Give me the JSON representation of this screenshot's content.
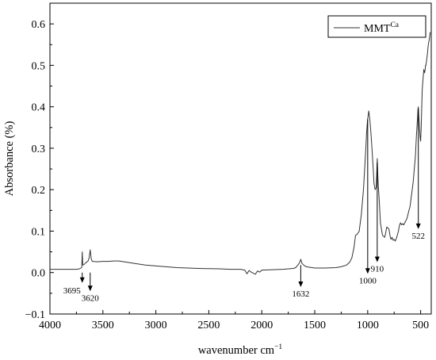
{
  "chart_data": {
    "type": "line",
    "xlabel": "wavenumber cm",
    "xlabel_exponent": "−1",
    "ylabel": "Absorbance (%)",
    "xlim": [
      4000,
      400
    ],
    "ylim": [
      -0.1,
      0.65
    ],
    "x_reversed": true,
    "grid": false,
    "legend_placement": "top-right",
    "x_ticks": [
      4000,
      3500,
      3000,
      2500,
      2000,
      1500,
      1000,
      500
    ],
    "x_tick_labels": [
      "4000",
      "3500",
      "3000",
      "2500",
      "2000",
      "1500",
      "1000",
      "500"
    ],
    "y_ticks": [
      -0.1,
      0.0,
      0.1,
      0.2,
      0.3,
      0.4,
      0.5,
      0.6
    ],
    "y_tick_labels": [
      "−0.1",
      "0.0",
      "0.1",
      "0.2",
      "0.3",
      "0.4",
      "0.5",
      "0.6"
    ],
    "series": [
      {
        "name": "MMT",
        "name_superscript": "Ca",
        "color": "#333333",
        "x": [
          4000,
          3750,
          3720,
          3700,
          3695,
          3690,
          3680,
          3660,
          3640,
          3630,
          3620,
          3610,
          3600,
          3550,
          3500,
          3450,
          3400,
          3350,
          3300,
          3200,
          3100,
          3000,
          2800,
          2600,
          2400,
          2300,
          2200,
          2160,
          2140,
          2120,
          2100,
          2060,
          2040,
          2020,
          2000,
          1900,
          1800,
          1700,
          1680,
          1660,
          1645,
          1632,
          1620,
          1600,
          1580,
          1500,
          1400,
          1300,
          1250,
          1200,
          1170,
          1150,
          1130,
          1115,
          1100,
          1080,
          1060,
          1040,
          1020,
          1010,
          1000,
          990,
          980,
          970,
          960,
          950,
          940,
          930,
          920,
          915,
          910,
          905,
          900,
          890,
          880,
          860,
          840,
          830,
          820,
          800,
          790,
          780,
          770,
          760,
          750,
          740,
          730,
          720,
          710,
          700,
          690,
          680,
          670,
          660,
          650,
          640,
          630,
          620,
          610,
          600,
          590,
          580,
          570,
          560,
          550,
          540,
          530,
          525,
          522,
          518,
          515,
          510,
          505,
          500,
          495,
          490,
          485,
          480,
          475,
          470,
          466,
          462,
          458,
          454,
          450,
          445,
          440,
          435,
          430,
          425,
          420,
          415,
          410
        ],
        "y": [
          0.008,
          0.008,
          0.009,
          0.012,
          0.05,
          0.018,
          0.019,
          0.024,
          0.028,
          0.035,
          0.055,
          0.033,
          0.027,
          0.026,
          0.027,
          0.027,
          0.028,
          0.028,
          0.026,
          0.022,
          0.018,
          0.016,
          0.012,
          0.01,
          0.009,
          0.008,
          0.008,
          0.006,
          -0.003,
          0.005,
          0.001,
          -0.004,
          0.004,
          0.001,
          0.006,
          0.007,
          0.008,
          0.01,
          0.012,
          0.018,
          0.023,
          0.032,
          0.022,
          0.017,
          0.014,
          0.011,
          0.011,
          0.012,
          0.014,
          0.018,
          0.025,
          0.035,
          0.06,
          0.09,
          0.092,
          0.1,
          0.14,
          0.2,
          0.29,
          0.34,
          0.37,
          0.39,
          0.37,
          0.34,
          0.3,
          0.26,
          0.215,
          0.2,
          0.205,
          0.235,
          0.275,
          0.24,
          0.21,
          0.17,
          0.12,
          0.09,
          0.085,
          0.095,
          0.11,
          0.105,
          0.09,
          0.08,
          0.085,
          0.078,
          0.08,
          0.076,
          0.082,
          0.09,
          0.1,
          0.114,
          0.12,
          0.115,
          0.118,
          0.115,
          0.12,
          0.125,
          0.13,
          0.14,
          0.15,
          0.16,
          0.18,
          0.2,
          0.22,
          0.25,
          0.28,
          0.33,
          0.37,
          0.395,
          0.4,
          0.38,
          0.37,
          0.345,
          0.325,
          0.317,
          0.35,
          0.4,
          0.44,
          0.46,
          0.475,
          0.49,
          0.485,
          0.482,
          0.49,
          0.5,
          0.5,
          0.51,
          0.52,
          0.53,
          0.545,
          0.555,
          0.56,
          0.57,
          0.58
        ]
      }
    ],
    "annotations": [
      {
        "label": "3695",
        "x": 3695,
        "y_start": 0.0,
        "y_end": -0.025,
        "label_side": "left"
      },
      {
        "label": "3620",
        "x": 3620,
        "y_start": 0.0,
        "y_end": -0.045,
        "label_side": "below"
      },
      {
        "label": "1632",
        "x": 1632,
        "y_start": 0.018,
        "y_end": -0.035,
        "label_side": "below"
      },
      {
        "label": "1000",
        "x": 1000,
        "y_start": 0.37,
        "y_end": -0.003,
        "label_side": "below"
      },
      {
        "label": "910",
        "x": 910,
        "y_start": 0.265,
        "y_end": 0.025,
        "label_side": "below"
      },
      {
        "label": "522",
        "x": 522,
        "y_start": 0.395,
        "y_end": 0.105,
        "label_side": "below"
      }
    ]
  }
}
